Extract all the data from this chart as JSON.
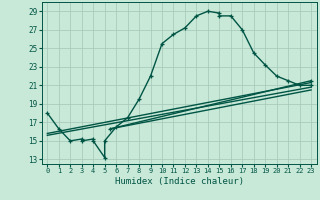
{
  "xlabel": "Humidex (Indice chaleur)",
  "background_color": "#c8e8d8",
  "grid_color": "#a8ccbc",
  "line_color": "#005544",
  "xlim": [
    -0.5,
    23.5
  ],
  "ylim": [
    12.5,
    30.0
  ],
  "xticks": [
    0,
    1,
    2,
    3,
    4,
    5,
    6,
    7,
    8,
    9,
    10,
    11,
    12,
    13,
    14,
    15,
    16,
    17,
    18,
    19,
    20,
    21,
    22,
    23
  ],
  "yticks": [
    13,
    15,
    17,
    19,
    21,
    23,
    25,
    27,
    29
  ],
  "curve_x": [
    0,
    1,
    2,
    3,
    3,
    4,
    4,
    5,
    5,
    6,
    7,
    8,
    9,
    10,
    11,
    12,
    13,
    14,
    15,
    15,
    16,
    17,
    18,
    19,
    20,
    21,
    22,
    23
  ],
  "curve_y": [
    18.0,
    16.3,
    15.0,
    15.2,
    15.0,
    15.2,
    15.0,
    13.2,
    15.0,
    16.5,
    17.5,
    19.5,
    22.0,
    25.5,
    26.5,
    27.2,
    28.5,
    29.0,
    28.8,
    28.5,
    28.5,
    27.0,
    24.5,
    23.2,
    22.0,
    21.5,
    21.0,
    21.0
  ],
  "line2_x": [
    0,
    23
  ],
  "line2_y": [
    15.6,
    20.8
  ],
  "line3_x": [
    0,
    23
  ],
  "line3_y": [
    15.8,
    21.3
  ],
  "line4_x": [
    5.5,
    23
  ],
  "line4_y": [
    16.3,
    21.5
  ],
  "line5_x": [
    5.5,
    23
  ],
  "line5_y": [
    16.3,
    20.5
  ],
  "marker_size": 3.5,
  "line_width": 1.0
}
